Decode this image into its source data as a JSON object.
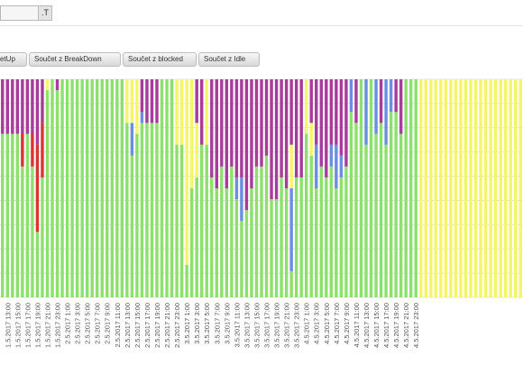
{
  "filter": {
    "value": "",
    "dropdown_icon": "filter-dropdown-icon",
    "dropdown_glyph": ".T"
  },
  "field_buttons": [
    "etUp",
    "Součet z BreakDown",
    "Součet z blocked",
    "Součet z Idle"
  ],
  "colors": {
    "BreakDown": "#dd3333",
    "blocked": "#6b8ee0",
    "Idle": "#f5f56a",
    "SetUp": "#a83c9a",
    "base": "#8ee06e"
  },
  "chart_data": {
    "type": "bar",
    "stacked": true,
    "normalized": true,
    "ylim": [
      0,
      1
    ],
    "grid": true,
    "categories": [
      "1.5.2017 13:00",
      "1.5.2017 15:00",
      "1.5.2017 17:00",
      "1.5.2017 19:00",
      "1.5.2017 21:00",
      "1.5.2017 23:00",
      "2.5.2017 1:00",
      "2.5.2017 3:00",
      "2.5.2017 5:00",
      "2.5.2017 7:00",
      "2.5.2017 9:00",
      "2.5.2017 11:00",
      "2.5.2017 13:00",
      "2.5.2017 15:00",
      "2.5.2017 17:00",
      "2.5.2017 19:00",
      "2.5.2017 21:00",
      "2.5.2017 23:00",
      "3.5.2017 1:00",
      "3.5.2017 3:00",
      "3.5.2017 5:00",
      "3.5.2017 7:00",
      "3.5.2017 9:00",
      "3.5.2017 11:00",
      "3.5.2017 13:00",
      "3.5.2017 15:00",
      "3.5.2017 17:00",
      "3.5.2017 19:00",
      "3.5.2017 21:00",
      "3.5.2017 23:00",
      "4.5.2017 1:00",
      "4.5.2017 3:00",
      "4.5.2017 5:00",
      "4.5.2017 7:00",
      "4.5.2017 9:00",
      "4.5.2017 11:00",
      "4.5.2017 13:00",
      "4.5.2017 15:00",
      "4.5.2017 17:00",
      "4.5.2017 19:00",
      "4.5.2017 21:00",
      "4.5.2017 23:00"
    ],
    "bars": [
      {
        "base": 0.75,
        "SetUp": 0.25
      },
      {
        "base": 0.75,
        "SetUp": 0.25
      },
      {
        "base": 0.75,
        "SetUp": 0.25
      },
      {
        "base": 0.75,
        "SetUp": 0.25
      },
      {
        "base": 0.6,
        "SetUp": 0.25,
        "BreakDown": 0.15
      },
      {
        "base": 0.75,
        "SetUp": 0.25
      },
      {
        "base": 0.6,
        "SetUp": 0.25,
        "BreakDown": 0.15
      },
      {
        "base": 0.3,
        "SetUp": 0.3,
        "BreakDown": 0.4
      },
      {
        "base": 0.55,
        "SetUp": 0.2,
        "BreakDown": 0.25
      },
      {
        "base": 0.95,
        "Idle": 0.05
      },
      {
        "base": 1
      },
      {
        "base": 0.95,
        "SetUp": 0.05
      },
      {
        "base": 1
      },
      {
        "base": 1
      },
      {
        "base": 1
      },
      {
        "base": 1
      },
      {
        "base": 1
      },
      {
        "base": 1
      },
      {
        "base": 1
      },
      {
        "base": 1
      },
      {
        "base": 1
      },
      {
        "base": 1
      },
      {
        "base": 1
      },
      {
        "base": 1
      },
      {
        "base": 1
      },
      {
        "base": 0.8,
        "Idle": 0.2
      },
      {
        "base": 0.65,
        "blocked": 0.15,
        "Idle": 0.2
      },
      {
        "base": 0.75,
        "Idle": 0.25
      },
      {
        "base": 0.8,
        "blocked": 0.05,
        "SetUp": 0.15
      },
      {
        "base": 0.8,
        "SetUp": 0.2
      },
      {
        "base": 0.8,
        "SetUp": 0.2
      },
      {
        "base": 0.8,
        "SetUp": 0.2
      },
      {
        "base": 1
      },
      {
        "base": 1
      },
      {
        "base": 1
      },
      {
        "base": 0.7,
        "Idle": 0.3
      },
      {
        "base": 0.7,
        "Idle": 0.3
      },
      {
        "base": 0.15,
        "Idle": 0.85
      },
      {
        "base": 0.5,
        "Idle": 0.5
      },
      {
        "base": 0.55,
        "SetUp": 0.2,
        "Idle": 0.25
      },
      {
        "base": 0.7,
        "SetUp": 0.3
      },
      {
        "base": 0.7,
        "Idle": 0.3
      },
      {
        "base": 0.55,
        "SetUp": 0.45
      },
      {
        "base": 0.5,
        "SetUp": 0.5
      },
      {
        "base": 0.6,
        "SetUp": 0.4
      },
      {
        "base": 0.5,
        "SetUp": 0.5
      },
      {
        "base": 0.6,
        "SetUp": 0.4
      },
      {
        "base": 0.45,
        "blocked": 0.1,
        "SetUp": 0.45
      },
      {
        "base": 0.35,
        "blocked": 0.2,
        "SetUp": 0.45
      },
      {
        "base": 0.4,
        "SetUp": 0.6
      },
      {
        "base": 0.5,
        "SetUp": 0.5
      },
      {
        "base": 0.6,
        "SetUp": 0.4
      },
      {
        "base": 0.6,
        "SetUp": 0.4
      },
      {
        "base": 0.65,
        "SetUp": 0.35
      },
      {
        "base": 0.45,
        "SetUp": 0.55
      },
      {
        "base": 0.45,
        "SetUp": 0.55
      },
      {
        "base": 0.55,
        "SetUp": 0.45
      },
      {
        "base": 0.5,
        "SetUp": 0.5
      },
      {
        "base": 0.12,
        "blocked": 0.38,
        "SetUp": 0.3,
        "Idle": 0.2
      },
      {
        "base": 0.55,
        "SetUp": 0.45
      },
      {
        "base": 0.55,
        "SetUp": 0.45
      },
      {
        "base": 0.75,
        "Idle": 0.25
      },
      {
        "base": 0.65,
        "SetUp": 0.2,
        "Idle": 0.15
      },
      {
        "base": 0.5,
        "blocked": 0.2,
        "SetUp": 0.3
      },
      {
        "base": 0.6,
        "SetUp": 0.4
      },
      {
        "base": 0.55,
        "SetUp": 0.45
      },
      {
        "base": 0.6,
        "blocked": 0.1,
        "SetUp": 0.3
      },
      {
        "base": 0.5,
        "blocked": 0.2,
        "SetUp": 0.3
      },
      {
        "base": 0.55,
        "blocked": 0.1,
        "SetUp": 0.35
      },
      {
        "base": 0.6,
        "SetUp": 0.4
      },
      {
        "base": 0.85,
        "blocked": 0.15
      },
      {
        "base": 0.8,
        "SetUp": 0.2
      },
      {
        "base": 1
      },
      {
        "base": 0.7,
        "blocked": 0.3
      },
      {
        "base": 1
      },
      {
        "base": 0.75,
        "blocked": 0.25
      },
      {
        "base": 0.8,
        "SetUp": 0.2
      },
      {
        "base": 0.7,
        "blocked": 0.3
      },
      {
        "base": 0.85,
        "blocked": 0.15
      },
      {
        "base": 0.85,
        "SetUp": 0.15
      },
      {
        "base": 0.75,
        "SetUp": 0.25
      },
      {
        "base": 1
      },
      {
        "base": 1
      },
      {
        "base": 1
      },
      {
        "Idle": 1
      },
      {
        "Idle": 1
      },
      {
        "Idle": 1
      },
      {
        "Idle": 1
      },
      {
        "Idle": 1
      },
      {
        "Idle": 1
      },
      {
        "Idle": 1
      },
      {
        "Idle": 1
      },
      {
        "Idle": 1
      },
      {
        "Idle": 1
      },
      {
        "Idle": 1
      },
      {
        "Idle": 1
      },
      {
        "Idle": 1
      },
      {
        "Idle": 1
      },
      {
        "Idle": 1
      },
      {
        "Idle": 1
      },
      {
        "Idle": 1
      },
      {
        "Idle": 1
      },
      {
        "Idle": 1
      },
      {
        "Idle": 1
      },
      {
        "Idle": 1
      }
    ]
  }
}
